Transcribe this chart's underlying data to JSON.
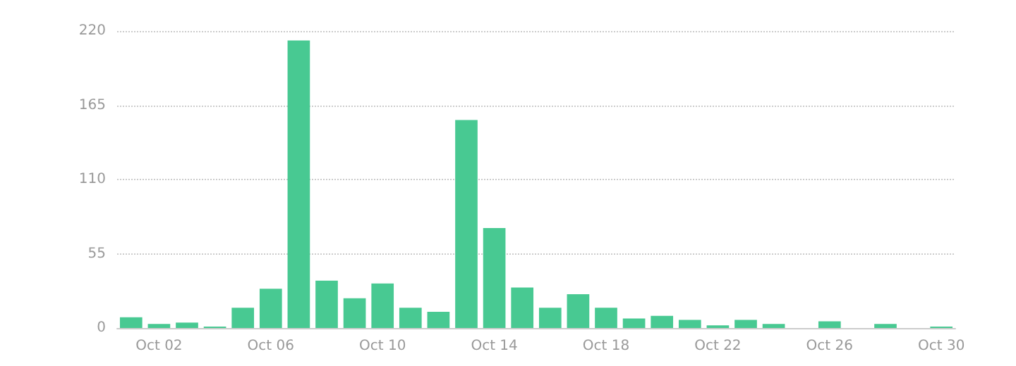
{
  "chart_data": {
    "type": "bar",
    "categories": [
      null,
      "Oct 02",
      null,
      null,
      null,
      "Oct 06",
      null,
      null,
      null,
      "Oct 10",
      null,
      null,
      null,
      "Oct 14",
      null,
      null,
      null,
      "Oct 18",
      null,
      null,
      null,
      "Oct 22",
      null,
      null,
      null,
      "Oct 26",
      null,
      null,
      null,
      "Oct 30"
    ],
    "values": [
      8,
      3,
      4,
      1,
      15,
      29,
      213,
      35,
      22,
      33,
      15,
      12,
      154,
      74,
      30,
      15,
      25,
      15,
      7,
      9,
      6,
      2,
      6,
      3,
      0,
      5,
      0,
      3,
      0,
      1
    ],
    "color": "#48c992",
    "ylim": [
      0,
      220
    ],
    "yticks": [
      0,
      55,
      110,
      165,
      220
    ],
    "grid": "y",
    "line_style": "dotted"
  }
}
